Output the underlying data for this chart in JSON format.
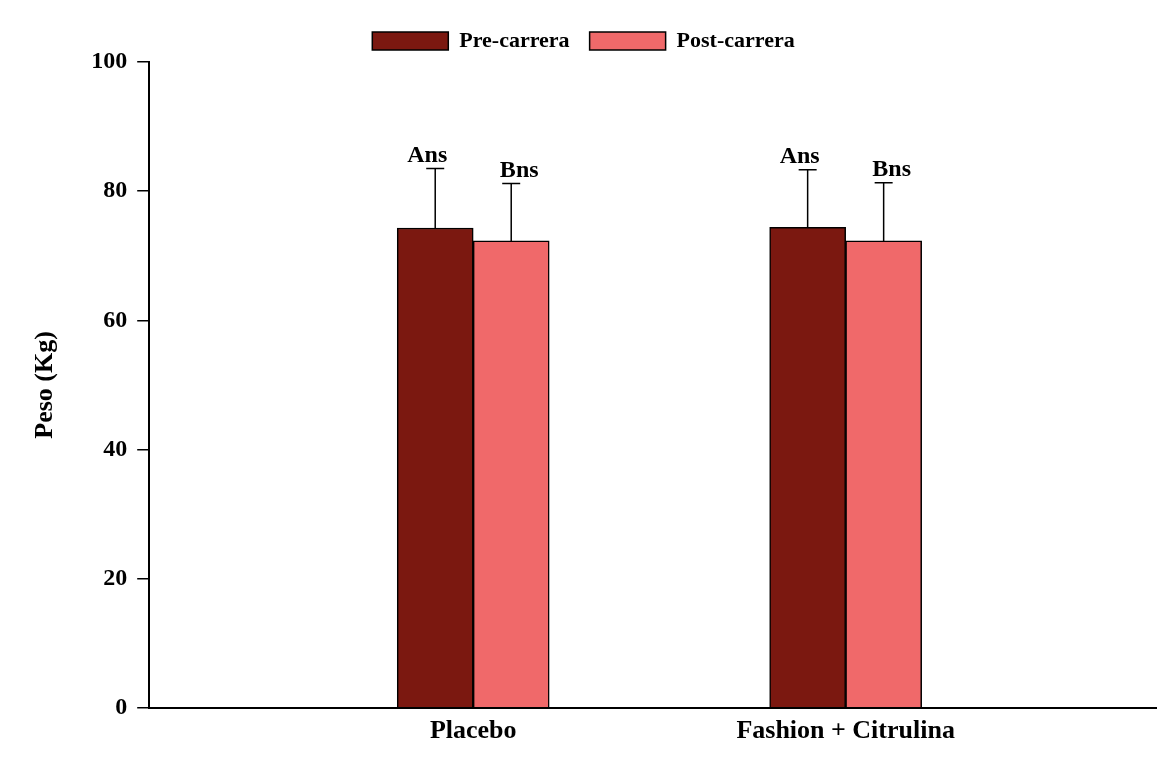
{
  "chart_data": {
    "type": "bar",
    "ylabel": "Peso (Kg)",
    "categories": [
      "Placebo",
      "Fashion + Citrulina"
    ],
    "series": [
      {
        "name": "Pre-carrera",
        "color": "#7b1810",
        "values": [
          74.3,
          74.4
        ],
        "errors": [
          [
            74.3,
            83.5
          ],
          [
            74.4,
            83.3
          ]
        ]
      },
      {
        "name": "Post-carrera",
        "color": "#f0696a",
        "values": [
          72.3,
          72.3
        ],
        "errors": [
          [
            72.3,
            81.2
          ],
          [
            72.3,
            81.3
          ]
        ]
      }
    ],
    "ylim": [
      0,
      100
    ],
    "yticks": [
      0,
      20,
      40,
      60,
      80,
      100
    ],
    "annotations": [
      "Ans",
      "Bns",
      "Ans",
      "Bns"
    ],
    "grid": false,
    "legend": "top"
  }
}
